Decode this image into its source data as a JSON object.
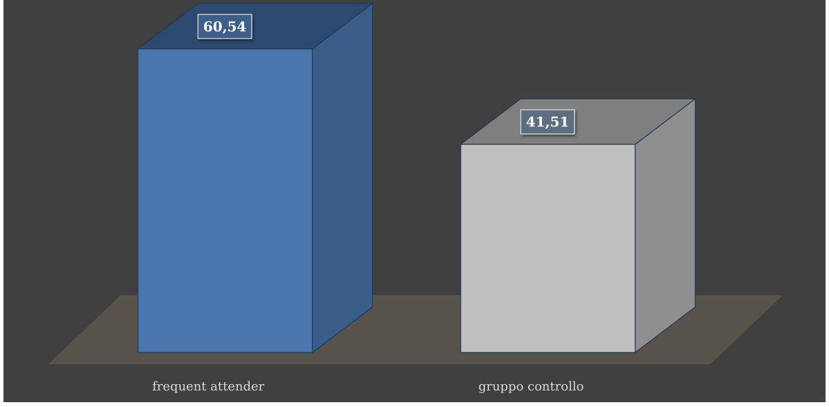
{
  "chart_data": {
    "type": "bar",
    "categories": [
      "frequent attender",
      "gruppo controllo"
    ],
    "values": [
      60.54,
      41.51
    ],
    "value_labels": [
      "60,54",
      "41,51"
    ],
    "ylim": [
      0,
      70
    ],
    "grid": false,
    "legend": "none",
    "colors": {
      "background": "#404040",
      "floor": "#57534b",
      "bar_front": [
        "#4a76ad",
        "#bfbfbf"
      ],
      "bar_side": [
        "#3b5d89",
        "#8f8f8f"
      ],
      "bar_top": [
        "#2c4a70",
        "#7f7f7f"
      ],
      "bar_edge": "#1f3a5a"
    }
  }
}
